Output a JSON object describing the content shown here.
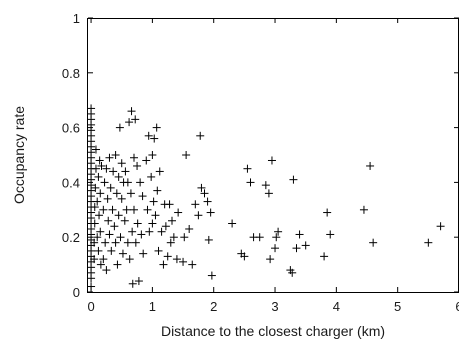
{
  "chart_data": {
    "type": "scatter",
    "title": "",
    "xlabel": "Distance to the closest charger (km)",
    "ylabel": "Occupancy rate",
    "xlim": [
      -0.05,
      6
    ],
    "ylim": [
      0,
      1
    ],
    "x_ticks": [
      "0",
      "1",
      "2",
      "3",
      "4",
      "5",
      "6"
    ],
    "y_ticks": [
      "0",
      "0.2",
      "0.4",
      "0.6",
      "0.8",
      "1"
    ],
    "grid": false,
    "legend": "none",
    "marker": "plus",
    "color": "#000000",
    "points": [
      [
        0.0,
        0.02
      ],
      [
        0.0,
        0.05
      ],
      [
        0.0,
        0.07
      ],
      [
        0.0,
        0.09
      ],
      [
        0.0,
        0.11
      ],
      [
        0.0,
        0.13
      ],
      [
        0.0,
        0.15
      ],
      [
        0.0,
        0.17
      ],
      [
        0.0,
        0.19
      ],
      [
        0.0,
        0.21
      ],
      [
        0.0,
        0.23
      ],
      [
        0.0,
        0.25
      ],
      [
        0.0,
        0.27
      ],
      [
        0.0,
        0.29
      ],
      [
        0.0,
        0.31
      ],
      [
        0.0,
        0.33
      ],
      [
        0.0,
        0.35
      ],
      [
        0.0,
        0.37
      ],
      [
        0.0,
        0.39
      ],
      [
        0.0,
        0.41
      ],
      [
        0.0,
        0.43
      ],
      [
        0.0,
        0.45
      ],
      [
        0.0,
        0.47
      ],
      [
        0.0,
        0.49
      ],
      [
        0.0,
        0.51
      ],
      [
        0.0,
        0.53
      ],
      [
        0.0,
        0.55
      ],
      [
        0.0,
        0.57
      ],
      [
        0.0,
        0.59
      ],
      [
        0.0,
        0.61
      ],
      [
        0.0,
        0.63
      ],
      [
        0.0,
        0.65
      ],
      [
        0.0,
        0.67
      ],
      [
        0.05,
        0.12
      ],
      [
        0.05,
        0.18
      ],
      [
        0.06,
        0.25
      ],
      [
        0.06,
        0.31
      ],
      [
        0.07,
        0.38
      ],
      [
        0.08,
        0.45
      ],
      [
        0.08,
        0.52
      ],
      [
        0.1,
        0.2
      ],
      [
        0.1,
        0.33
      ],
      [
        0.12,
        0.15
      ],
      [
        0.12,
        0.42
      ],
      [
        0.13,
        0.28
      ],
      [
        0.14,
        0.48
      ],
      [
        0.15,
        0.22
      ],
      [
        0.15,
        0.36
      ],
      [
        0.16,
        0.1
      ],
      [
        0.17,
        0.46
      ],
      [
        0.2,
        0.12
      ],
      [
        0.2,
        0.3
      ],
      [
        0.22,
        0.4
      ],
      [
        0.23,
        0.18
      ],
      [
        0.25,
        0.45
      ],
      [
        0.25,
        0.08
      ],
      [
        0.27,
        0.34
      ],
      [
        0.28,
        0.26
      ],
      [
        0.3,
        0.49
      ],
      [
        0.3,
        0.21
      ],
      [
        0.32,
        0.38
      ],
      [
        0.33,
        0.15
      ],
      [
        0.35,
        0.3
      ],
      [
        0.36,
        0.44
      ],
      [
        0.38,
        0.24
      ],
      [
        0.4,
        0.5
      ],
      [
        0.4,
        0.18
      ],
      [
        0.42,
        0.36
      ],
      [
        0.43,
        0.1
      ],
      [
        0.45,
        0.42
      ],
      [
        0.45,
        0.28
      ],
      [
        0.47,
        0.6
      ],
      [
        0.48,
        0.2
      ],
      [
        0.5,
        0.34
      ],
      [
        0.5,
        0.47
      ],
      [
        0.52,
        0.14
      ],
      [
        0.53,
        0.4
      ],
      [
        0.55,
        0.26
      ],
      [
        0.56,
        0.44
      ],
      [
        0.58,
        0.3
      ],
      [
        0.6,
        0.18
      ],
      [
        0.6,
        0.4
      ],
      [
        0.62,
        0.62
      ],
      [
        0.63,
        0.12
      ],
      [
        0.65,
        0.36
      ],
      [
        0.66,
        0.66
      ],
      [
        0.67,
        0.22
      ],
      [
        0.68,
        0.03
      ],
      [
        0.7,
        0.49
      ],
      [
        0.7,
        0.3
      ],
      [
        0.72,
        0.63
      ],
      [
        0.73,
        0.18
      ],
      [
        0.75,
        0.46
      ],
      [
        0.76,
        0.25
      ],
      [
        0.78,
        0.04
      ],
      [
        0.8,
        0.4
      ],
      [
        0.82,
        0.21
      ],
      [
        0.84,
        0.35
      ],
      [
        0.85,
        0.14
      ],
      [
        0.9,
        0.48
      ],
      [
        0.92,
        0.3
      ],
      [
        0.94,
        0.57
      ],
      [
        0.95,
        0.22
      ],
      [
        0.98,
        0.42
      ],
      [
        1.0,
        0.25
      ],
      [
        1.0,
        0.5
      ],
      [
        1.02,
        0.33
      ],
      [
        1.03,
        0.56
      ],
      [
        1.05,
        0.28
      ],
      [
        1.07,
        0.6
      ],
      [
        1.08,
        0.37
      ],
      [
        1.1,
        0.15
      ],
      [
        1.12,
        0.44
      ],
      [
        1.15,
        0.22
      ],
      [
        1.18,
        0.1
      ],
      [
        1.2,
        0.32
      ],
      [
        1.22,
        0.24
      ],
      [
        1.25,
        0.13
      ],
      [
        1.28,
        0.32
      ],
      [
        1.3,
        0.18
      ],
      [
        1.32,
        0.26
      ],
      [
        1.35,
        0.2
      ],
      [
        1.4,
        0.12
      ],
      [
        1.42,
        0.29
      ],
      [
        1.5,
        0.11
      ],
      [
        1.52,
        0.2
      ],
      [
        1.55,
        0.5
      ],
      [
        1.6,
        0.23
      ],
      [
        1.65,
        0.1
      ],
      [
        1.7,
        0.32
      ],
      [
        1.75,
        0.28
      ],
      [
        1.78,
        0.57
      ],
      [
        1.8,
        0.38
      ],
      [
        1.85,
        0.36
      ],
      [
        1.9,
        0.33
      ],
      [
        1.92,
        0.19
      ],
      [
        1.95,
        0.29
      ],
      [
        1.97,
        0.06
      ],
      [
        2.3,
        0.25
      ],
      [
        2.45,
        0.14
      ],
      [
        2.5,
        0.13
      ],
      [
        2.55,
        0.45
      ],
      [
        2.6,
        0.4
      ],
      [
        2.65,
        0.2
      ],
      [
        2.75,
        0.2
      ],
      [
        2.85,
        0.39
      ],
      [
        2.9,
        0.36
      ],
      [
        2.92,
        0.12
      ],
      [
        2.95,
        0.48
      ],
      [
        3.0,
        0.16
      ],
      [
        3.02,
        0.2
      ],
      [
        3.05,
        0.22
      ],
      [
        3.25,
        0.08
      ],
      [
        3.28,
        0.07
      ],
      [
        3.3,
        0.41
      ],
      [
        3.35,
        0.16
      ],
      [
        3.4,
        0.21
      ],
      [
        3.5,
        0.17
      ],
      [
        3.8,
        0.13
      ],
      [
        3.85,
        0.29
      ],
      [
        3.9,
        0.21
      ],
      [
        4.45,
        0.3
      ],
      [
        4.55,
        0.46
      ],
      [
        4.6,
        0.18
      ],
      [
        5.5,
        0.18
      ],
      [
        5.7,
        0.24
      ]
    ]
  }
}
